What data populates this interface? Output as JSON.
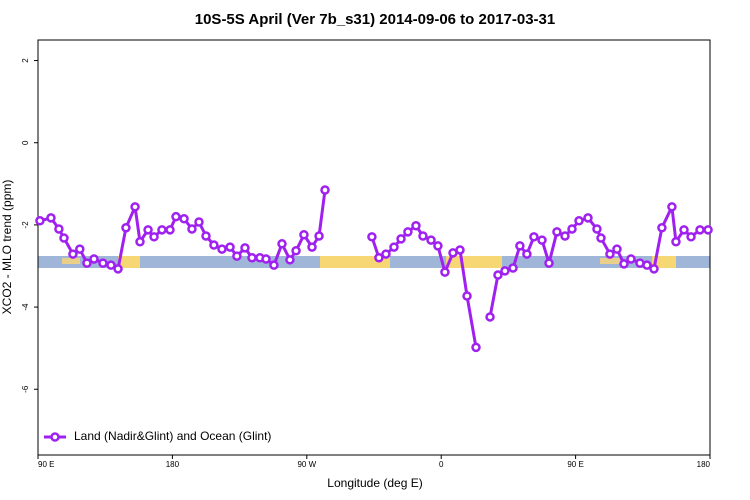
{
  "chart_data": {
    "type": "line",
    "title": "10S-5S April (Ver 7b_s31)   2014-09-06 to 2017-03-31",
    "x_label": "Longitude (deg E)",
    "y_label": "XCO2 - MLO trend (ppm)",
    "xlim": [
      90,
      540
    ],
    "xticks": [
      {
        "value": 90,
        "label": "90 E"
      },
      {
        "value": 180,
        "label": "180"
      },
      {
        "value": 270,
        "label": "90 W"
      },
      {
        "value": 360,
        "label": "0"
      },
      {
        "value": 450,
        "label": "90 E"
      },
      {
        "value": 540,
        "label": "180"
      }
    ],
    "ylim": [
      -7.6,
      2.5
    ],
    "yticks": [
      2,
      0,
      -2,
      -4,
      -6
    ],
    "legend_position": "bottom-left",
    "series": [
      {
        "name": "Land (Nadir&Glint) and Ocean (Glint)",
        "color": "#a020f0",
        "x": [
          91.3,
          98.7,
          104,
          107.4,
          113.4,
          118,
          122.8,
          127.5,
          133.5,
          138.9,
          143.6,
          148.9,
          155,
          158.3,
          163.7,
          167.7,
          173,
          178.4,
          182.4,
          187.8,
          193.1,
          197.8,
          202.5,
          207.8,
          213.2,
          218.6,
          223.2,
          228.6,
          233.3,
          238.6,
          242.7,
          248,
          253.4,
          258.7,
          262.8,
          268.1,
          273.5,
          278.2,
          282.2,
          null,
          313.6,
          318.3,
          323,
          328.4,
          333.1,
          337.7,
          343.1,
          347.8,
          353.2,
          357.8,
          362.5,
          367.9,
          372.6,
          377.3,
          383.3,
          null,
          392.7,
          398,
          402.7,
          408.1,
          412.7,
          417.4,
          422.1,
          427.5,
          432.2,
          437.5,
          442.9,
          447.6,
          452.3,
          458.3,
          464.3,
          467,
          473,
          477.7,
          482.4,
          487.1,
          493.1,
          497.8,
          502.5,
          507.8,
          514.5,
          517.2,
          522.6,
          527.3,
          533.3,
          538.7
        ],
        "values": [
          -1.9,
          -1.83,
          -2.1,
          -2.32,
          -2.71,
          -2.59,
          -2.93,
          -2.83,
          -2.93,
          -2.98,
          -3.07,
          -2.07,
          -1.56,
          -2.41,
          -2.12,
          -2.29,
          -2.12,
          -2.12,
          -1.8,
          -1.85,
          -2.1,
          -1.93,
          -2.27,
          -2.49,
          -2.59,
          -2.54,
          -2.76,
          -2.56,
          -2.8,
          -2.8,
          -2.83,
          -2.98,
          -2.46,
          -2.85,
          -2.63,
          -2.24,
          -2.54,
          -2.27,
          -1.15,
          null,
          -2.29,
          -2.8,
          -2.71,
          -2.54,
          -2.34,
          -2.17,
          -2.02,
          -2.27,
          -2.37,
          -2.51,
          -3.15,
          -2.68,
          -2.61,
          -3.73,
          -4.98,
          null,
          -4.24,
          -3.22,
          -3.12,
          -3.05,
          -2.51,
          -2.71,
          -2.29,
          -2.37,
          -2.93,
          -2.17,
          -2.27,
          -2.1,
          -1.9,
          -1.83,
          -2.1,
          -2.32,
          -2.71,
          -2.59,
          -2.95,
          -2.83,
          -2.93,
          -2.98,
          -3.07,
          -2.07,
          -1.56,
          -2.41,
          -2.12,
          -2.29,
          -2.12,
          -2.12
        ]
      }
    ]
  }
}
